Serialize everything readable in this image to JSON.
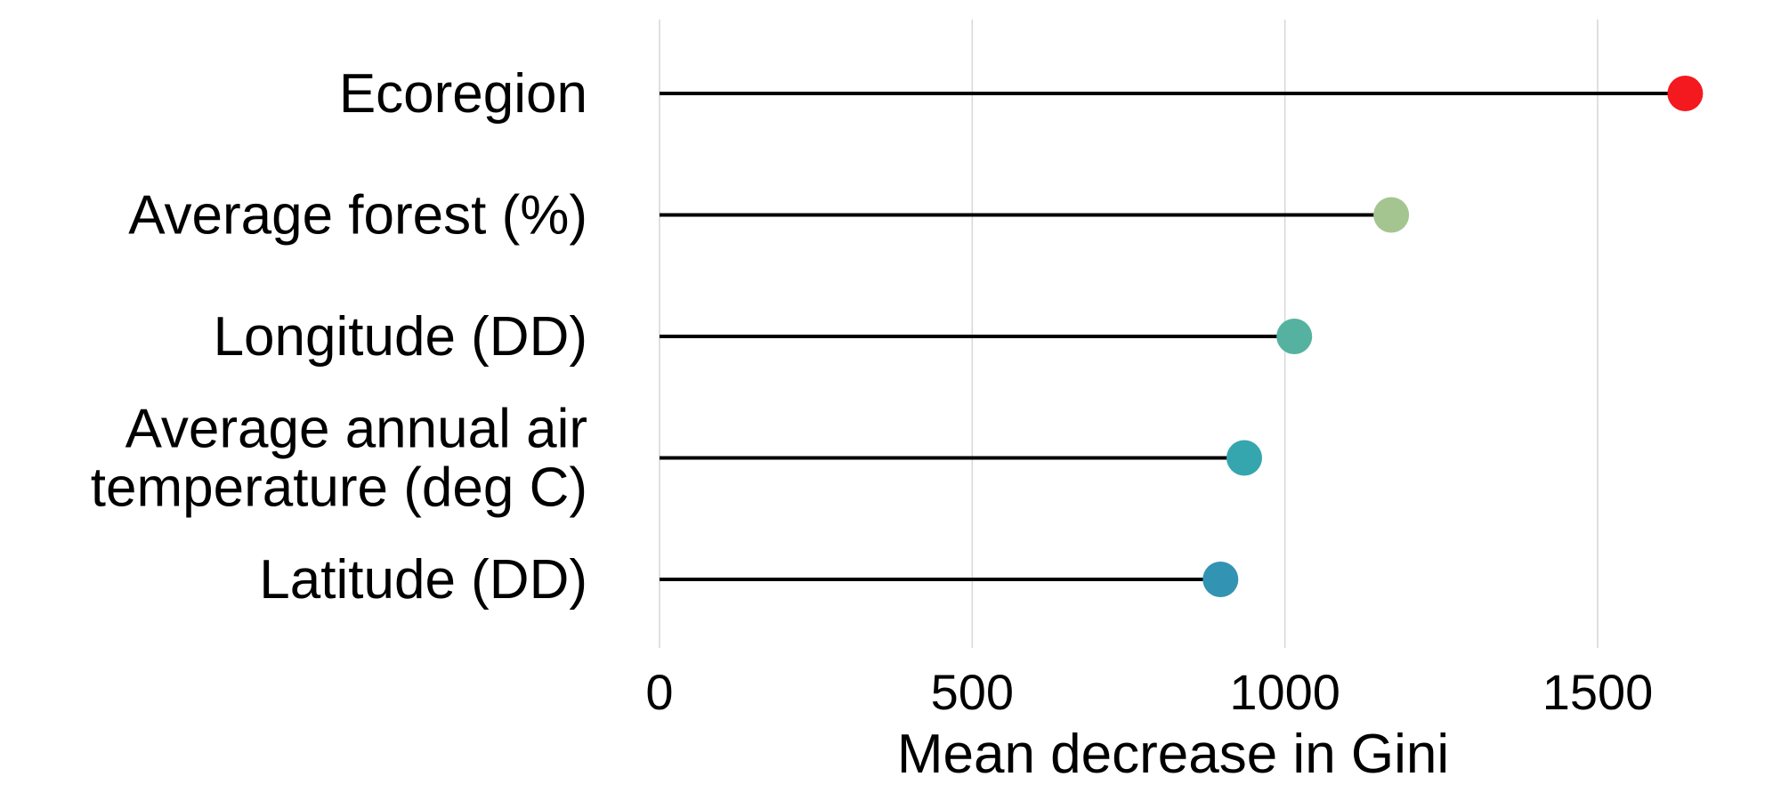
{
  "chart_data": {
    "type": "lollipop",
    "title": "",
    "xlabel": "Mean decrease in Gini",
    "ylabel": "",
    "xlim": [
      0,
      1640
    ],
    "x_ticks": [
      0,
      500,
      1000,
      1500
    ],
    "x_tick_labels": [
      "0",
      "500",
      "1000",
      "1500"
    ],
    "grid": "vertical major gridlines",
    "legend": "none",
    "categories": [
      {
        "label_lines": [
          "Ecoregion"
        ],
        "value": 1640,
        "color": "#f4191f"
      },
      {
        "label_lines": [
          "Average forest (%)"
        ],
        "value": 1170,
        "color": "#a5c590"
      },
      {
        "label_lines": [
          "Longitude (DD)"
        ],
        "value": 1015,
        "color": "#55b2a0"
      },
      {
        "label_lines": [
          "Average annual air",
          "temperature (deg C)"
        ],
        "value": 935,
        "color": "#36a6ae"
      },
      {
        "label_lines": [
          "Latitude (DD)"
        ],
        "value": 897,
        "color": "#3393b2"
      }
    ]
  }
}
